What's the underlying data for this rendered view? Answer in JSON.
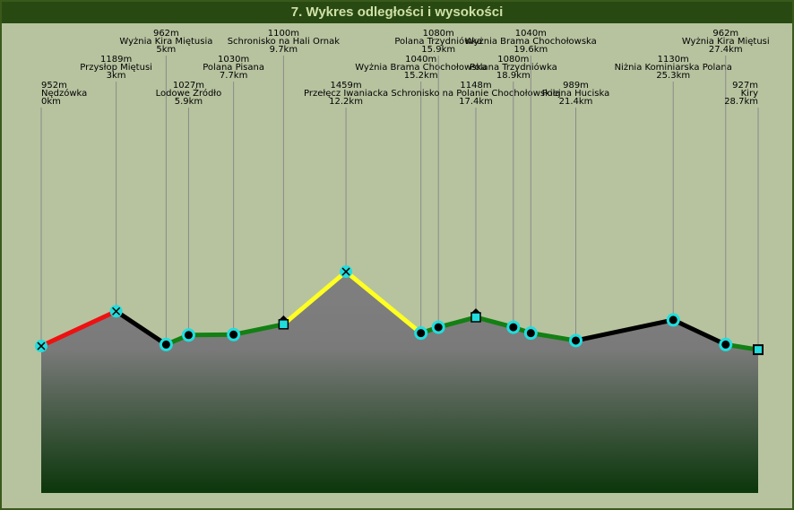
{
  "chart_data": {
    "type": "line",
    "title": "7. Wykres odległości i wysokości",
    "names": [
      "Nędzówka",
      "Przysłop Miętusi",
      "Wyżnia Kira Miętusia",
      "Lodowe Źródło",
      "Polana Pisana",
      "Schronisko na Hali Ornak",
      "Przełęcz Iwaniacka",
      "Wyżnia Brama Chochołowska",
      "Polana Trzydniówka",
      "Schronisko na Polanie Chochołowskiej",
      "Polana Trzydniówka",
      "Wyżnia Brama Chochołowska",
      "Polana Huciska",
      "Niżnia Kominiarska Polana",
      "Wyżnia Kira Miętusi",
      "Kiry"
    ],
    "x": [
      0,
      3,
      5,
      5.9,
      7.7,
      9.7,
      12.2,
      15.2,
      15.9,
      17.4,
      18.9,
      19.6,
      21.4,
      25.3,
      27.4,
      28.7
    ],
    "x_labels": [
      "0km",
      "3km",
      "5km",
      "5.9km",
      "7.7km",
      "9.7km",
      "12.2km",
      "15.2km",
      "15.9km",
      "17.4km",
      "18.9km",
      "19.6km",
      "21.4km",
      "25.3km",
      "27.4km",
      "28.7km"
    ],
    "values": [
      952,
      1189,
      962,
      1027,
      1030,
      1100,
      1459,
      1040,
      1080,
      1148,
      1080,
      1040,
      989,
      1130,
      962,
      927
    ],
    "value_labels": [
      "952m",
      "1189m",
      "962m",
      "1027m",
      "1030m",
      "1100m",
      "1459m",
      "1040m",
      "1080m",
      "1148m",
      "1080m",
      "1040m",
      "989m",
      "1130m",
      "962m",
      "927m"
    ],
    "markers": [
      "cross",
      "cross",
      "circle",
      "circle",
      "circle",
      "hut",
      "cross",
      "circle",
      "circle",
      "hut",
      "circle",
      "circle",
      "circle",
      "circle",
      "circle",
      "square"
    ],
    "segment_colors": [
      "#ee1111",
      "#000000",
      "#138013",
      "#138013",
      "#138013",
      "#ffff22",
      "#ffff22",
      "#138013",
      "#138013",
      "#138013",
      "#138013",
      "#138013",
      "#000000",
      "#000000",
      "#138013"
    ],
    "xlim": [
      0,
      28.7
    ],
    "ylim": [
      -50,
      3140
    ]
  }
}
